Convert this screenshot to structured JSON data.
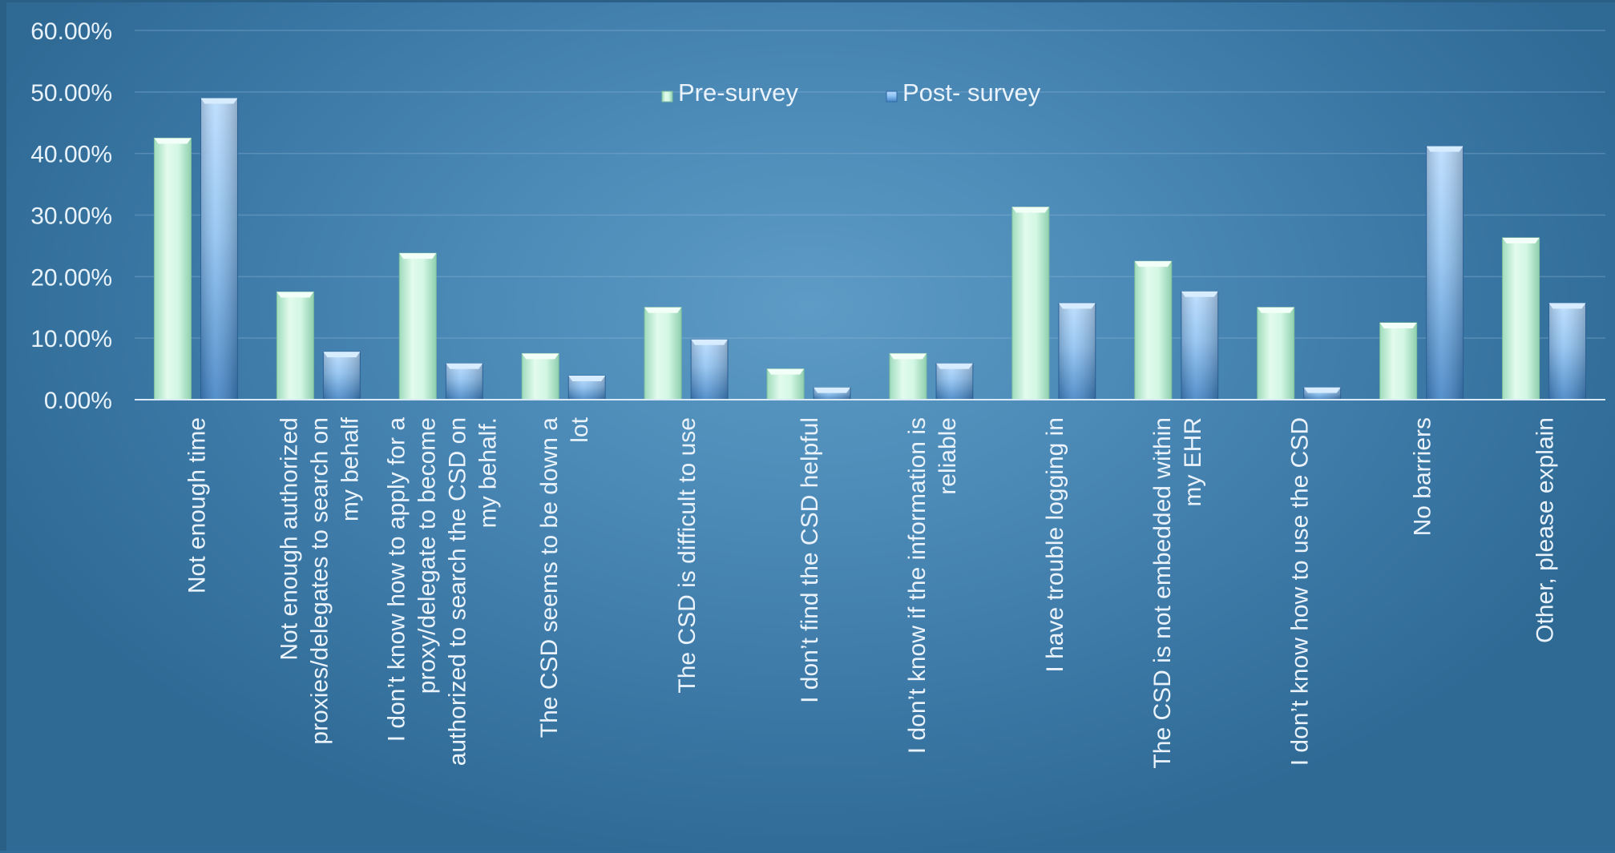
{
  "chart_data": {
    "type": "bar",
    "ylim": [
      0,
      60
    ],
    "yticks": [
      {
        "value": 0,
        "label": "0.00%"
      },
      {
        "value": 10,
        "label": "10.00%"
      },
      {
        "value": 20,
        "label": "20.00%"
      },
      {
        "value": 30,
        "label": "30.00%"
      },
      {
        "value": 40,
        "label": "40.00%"
      },
      {
        "value": 50,
        "label": "50.00%"
      },
      {
        "value": 60,
        "label": "60.00%"
      }
    ],
    "grid": true,
    "legend_position": "top-center",
    "categories": [
      [
        "Not enough time"
      ],
      [
        "Not enough authorized",
        "proxies/delegates to search on",
        "my behalf"
      ],
      [
        "I don’t know how to apply for a",
        "proxy/delegate to become",
        "authorized to search the CSD on",
        "my behalf."
      ],
      [
        "The CSD seems to be down a",
        "lot"
      ],
      [
        "The CSD is difficult to use"
      ],
      [
        "I don’t find the CSD helpful"
      ],
      [
        "I don’t know if the information is",
        "reliable"
      ],
      [
        "I have trouble logging in"
      ],
      [
        "The CSD is not embedded within",
        "my EHR"
      ],
      [
        "I don’t know how to use the CSD"
      ],
      [
        "No barriers"
      ],
      [
        "Other, please explain"
      ]
    ],
    "series": [
      {
        "name": "Pre-survey",
        "color": "#c8f2dc",
        "values": [
          42.5,
          17.5,
          23.8,
          7.5,
          15.0,
          5.0,
          7.5,
          31.3,
          22.5,
          15.0,
          12.5,
          26.3
        ]
      },
      {
        "name": "Post- survey",
        "color": "#7fb4e6",
        "values": [
          49.0,
          7.8,
          5.9,
          3.9,
          9.8,
          2.0,
          5.9,
          15.7,
          17.6,
          2.0,
          41.2,
          15.7
        ]
      }
    ]
  }
}
